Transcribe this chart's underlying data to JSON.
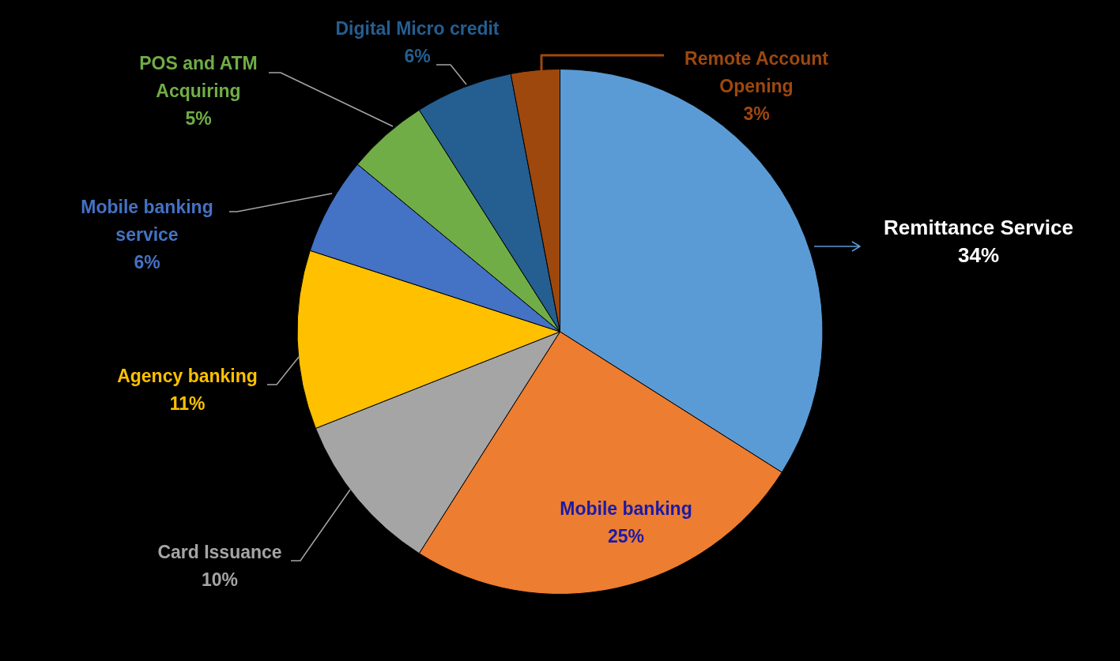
{
  "chart_data": {
    "type": "pie",
    "categories": [
      "Remittance Service",
      "Mobile banking",
      "Card Issuance",
      "Agency banking",
      "Mobile banking service",
      "POS and ATM Acquiring",
      "Digital Micro credit",
      "Remote Account Opening"
    ],
    "values": [
      34,
      25,
      10,
      11,
      6,
      5,
      6,
      3
    ],
    "colors": [
      "#5b9bd5",
      "#ed7d31",
      "#a5a5a5",
      "#ffc000",
      "#4472c4",
      "#70ad47",
      "#255e91",
      "#9e480e"
    ],
    "value_labels": [
      "34%",
      "25%",
      "10%",
      "11%",
      "6%",
      "5%",
      "6%",
      "3%"
    ],
    "legend": false
  }
}
